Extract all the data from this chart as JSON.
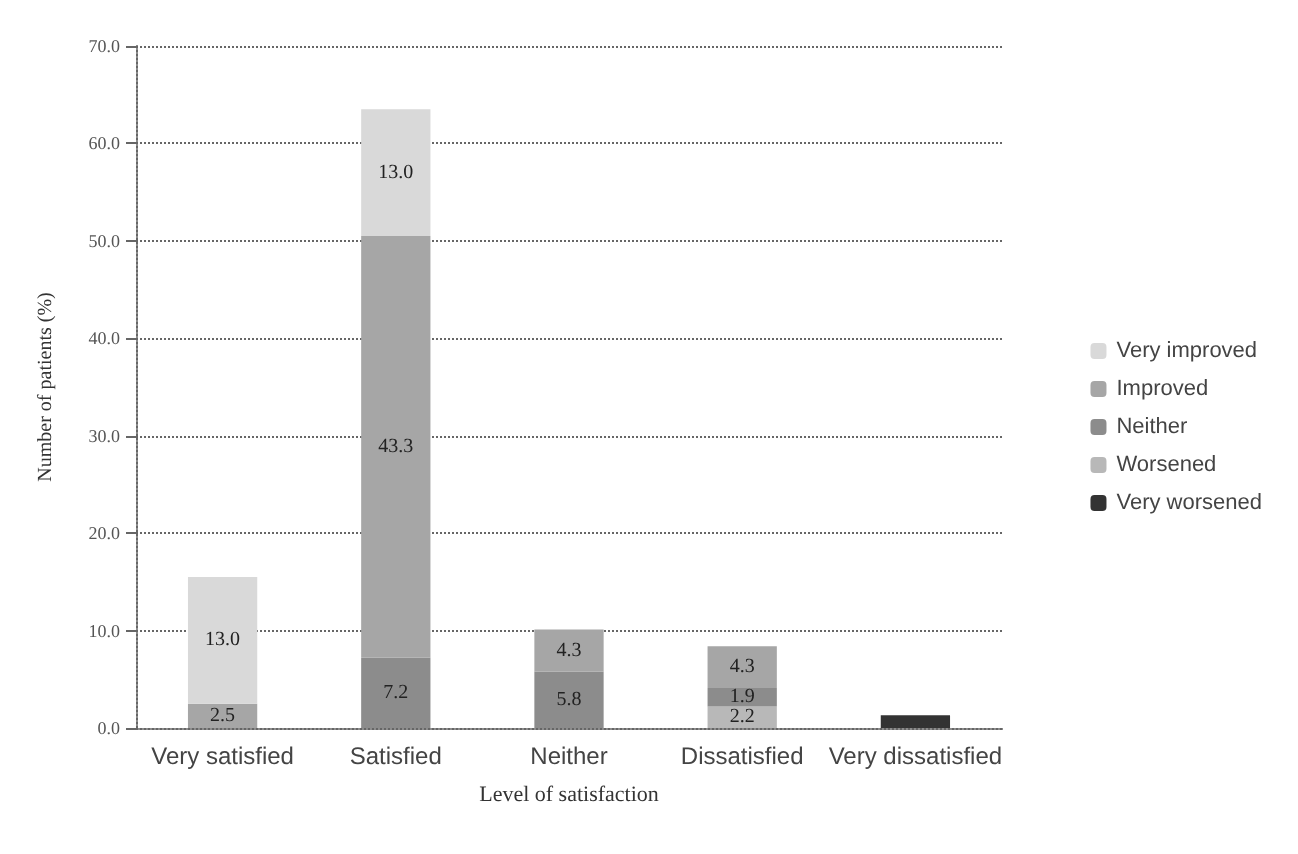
{
  "chart_data": {
    "type": "bar",
    "stacked": true,
    "xlabel": "Level of satisfaction",
    "ylabel": "Number of patients (%)",
    "categories": [
      "Very satisfied",
      "Satisfied",
      "Neither",
      "Dissatisfied",
      "Very dissatisfied"
    ],
    "series": [
      {
        "name": "Very worsened",
        "color": "#333333",
        "values": [
          null,
          null,
          null,
          null,
          1.3
        ],
        "value_labels": [
          null,
          null,
          null,
          null,
          null
        ]
      },
      {
        "name": "Worsened",
        "color": "#b8b8b8",
        "values": [
          null,
          null,
          null,
          2.2,
          null
        ],
        "value_labels": [
          null,
          null,
          null,
          "2.2",
          null
        ]
      },
      {
        "name": "Neither",
        "color": "#8c8c8c",
        "values": [
          null,
          7.2,
          5.8,
          1.9,
          null
        ],
        "value_labels": [
          null,
          "7.2",
          "5.8",
          "1.9",
          null
        ]
      },
      {
        "name": "Improved",
        "color": "#a6a6a6",
        "values": [
          2.5,
          43.3,
          4.3,
          4.3,
          null
        ],
        "value_labels": [
          "2.5",
          "43.3",
          "4.3",
          "4.3",
          null
        ]
      },
      {
        "name": "Very improved",
        "color": "#d9d9d9",
        "values": [
          13.0,
          13.0,
          null,
          null,
          null
        ],
        "value_labels": [
          "13.0",
          "13.0",
          null,
          null,
          null
        ]
      }
    ],
    "ylim": [
      0,
      70
    ],
    "yticks": [
      {
        "value": 0,
        "label": "0.0"
      },
      {
        "value": 10,
        "label": "10.0"
      },
      {
        "value": 20,
        "label": "20.0"
      },
      {
        "value": 30,
        "label": "30.0"
      },
      {
        "value": 40,
        "label": "40.0"
      },
      {
        "value": 50,
        "label": "50.0"
      },
      {
        "value": 60,
        "label": "60.0"
      },
      {
        "value": 70,
        "label": "70.0"
      }
    ],
    "grid": "y",
    "legend": "right"
  }
}
